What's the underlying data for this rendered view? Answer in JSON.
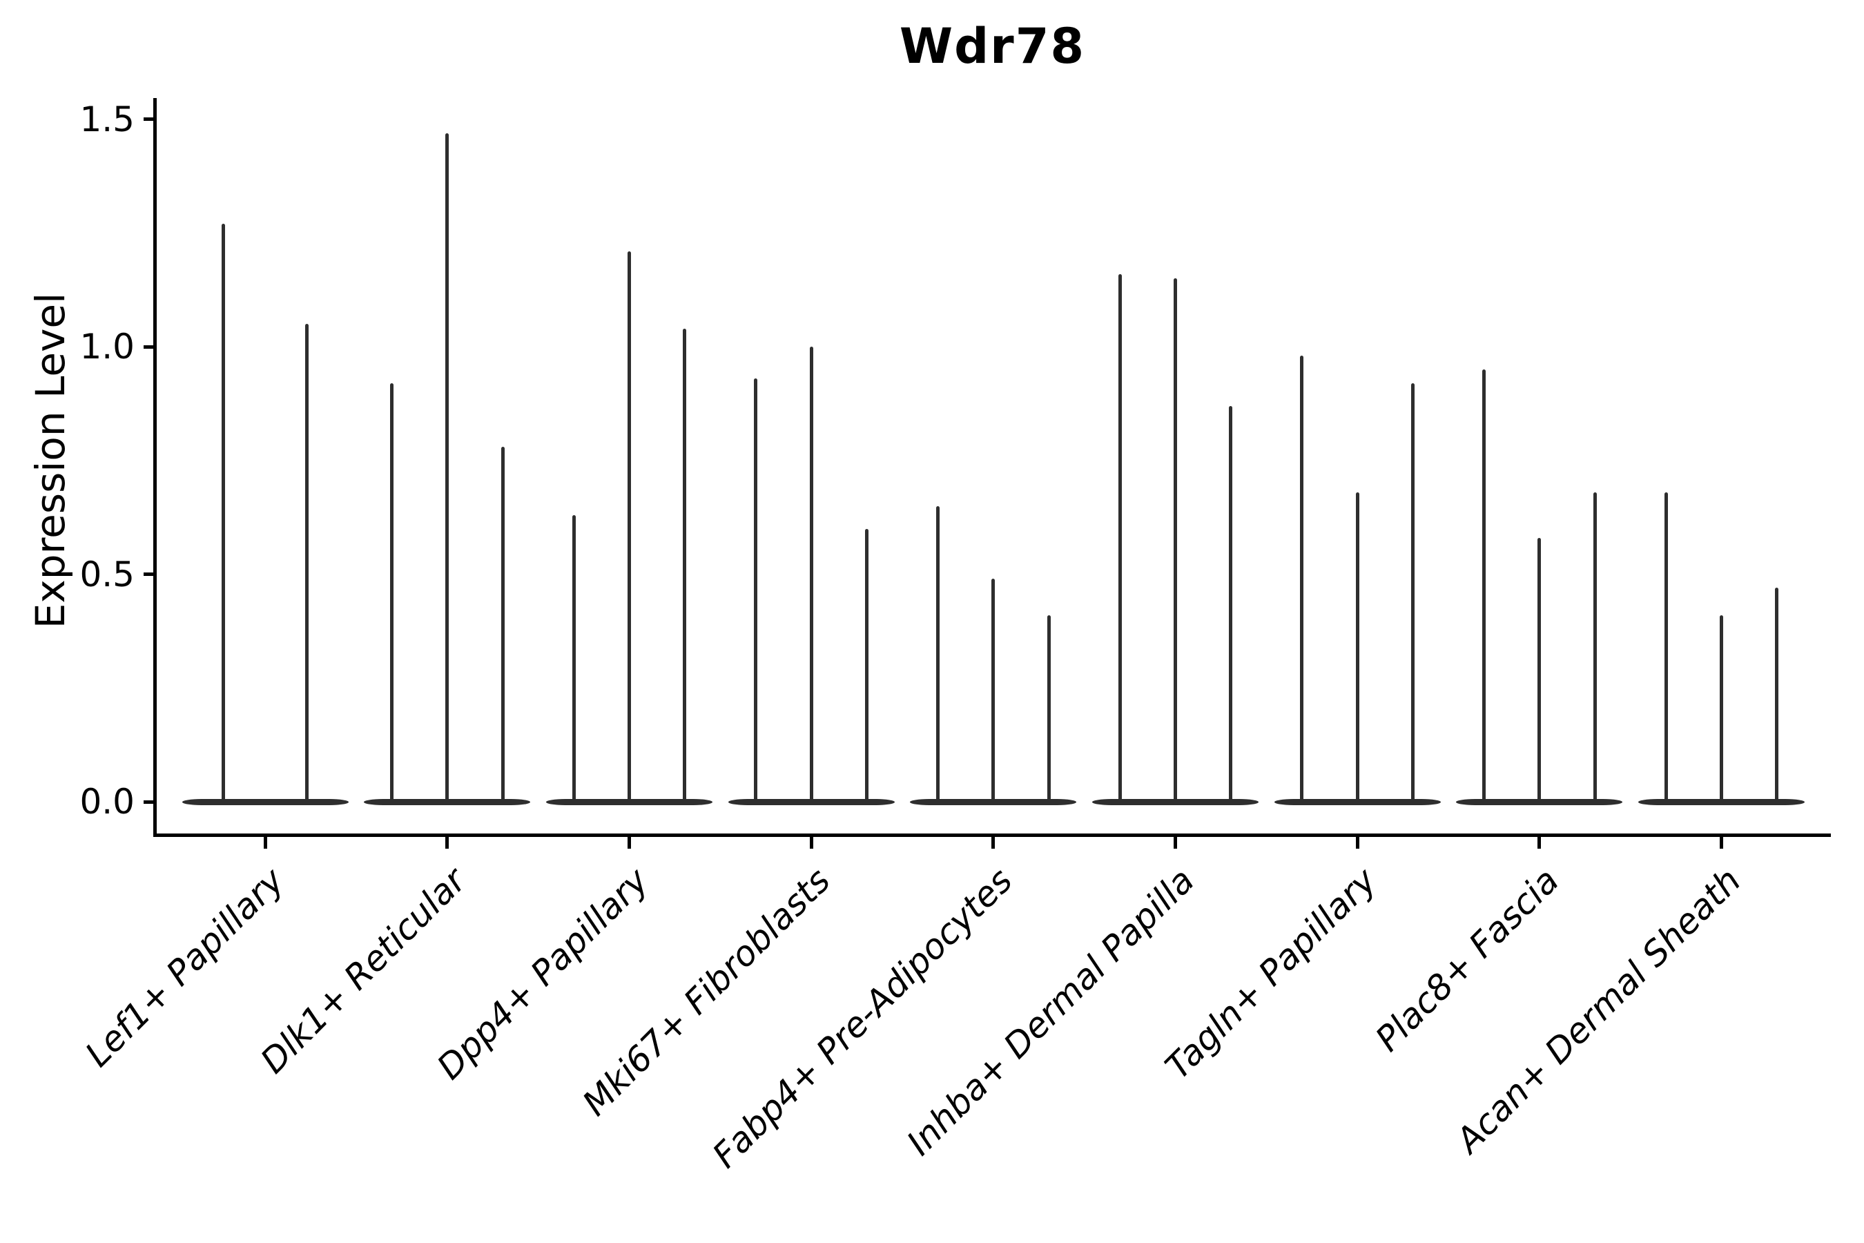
{
  "chart_data": {
    "type": "violin",
    "title": "Wdr78",
    "xlabel": "",
    "ylabel": "Expression Level",
    "ytick_labels": [
      "0.0",
      "0.5",
      "1.0",
      "1.5"
    ],
    "ytick_values": [
      0.0,
      0.5,
      1.0,
      1.5
    ],
    "ylim": [
      -0.07,
      1.55
    ],
    "grid": false,
    "legend": "none",
    "violin_color": "#2e2e2e",
    "axis_color": "#000000",
    "distribution_note": "Each violin is concentrated at expression 0 (wide flat base) with a thin tail spike reaching the listed maximum expression value.",
    "categories": [
      "Lef1+ Papillary",
      "Dlk1+ Reticular",
      "Dpp4+ Papillary",
      "Mki67+ Fibroblasts",
      "Fabp4+ Pre-Adipocytes",
      "Inhba+ Dermal Papilla",
      "Tagln+ Papillary",
      "Plac8+ Fascia",
      "Acan+ Dermal Sheath"
    ],
    "groups": [
      {
        "category": "Lef1+ Papillary",
        "violin_maxima": [
          1.27,
          1.05
        ]
      },
      {
        "category": "Dlk1+ Reticular",
        "violin_maxima": [
          0.92,
          1.47,
          0.78
        ]
      },
      {
        "category": "Dpp4+ Papillary",
        "violin_maxima": [
          0.63,
          1.21,
          1.04
        ]
      },
      {
        "category": "Mki67+ Fibroblasts",
        "violin_maxima": [
          0.93,
          1.0,
          0.6
        ]
      },
      {
        "category": "Fabp4+ Pre-Adipocytes",
        "violin_maxima": [
          0.65,
          0.49,
          0.41
        ]
      },
      {
        "category": "Inhba+ Dermal Papilla",
        "violin_maxima": [
          1.16,
          1.15,
          0.87
        ]
      },
      {
        "category": "Tagln+ Papillary",
        "violin_maxima": [
          0.98,
          0.68,
          0.92
        ]
      },
      {
        "category": "Plac8+ Fascia",
        "violin_maxima": [
          0.95,
          0.58,
          0.68
        ]
      },
      {
        "category": "Acan+ Dermal Sheath",
        "violin_maxima": [
          0.68,
          0.41,
          0.47
        ]
      }
    ]
  }
}
